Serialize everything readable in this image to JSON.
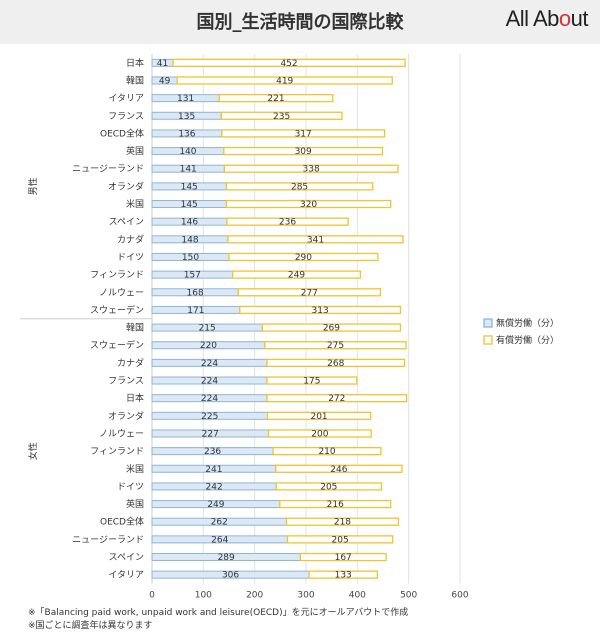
{
  "header": {
    "title": "国別_生活時間の国際比較",
    "logo": {
      "left": "All Ab",
      "o": "o",
      "right": "ut"
    }
  },
  "notes": [
    "※「Balancing paid work, unpaid work and leisure(OECD)」を元にオールアバウトで作成",
    "※国ごとに調査年は異なります"
  ],
  "colors": {
    "unpaid_fill": "#dce9f5",
    "unpaid_border": "#8db4d9",
    "paid_fill": "#ffffff",
    "paid_border": "#f2c230"
  },
  "chart_data": {
    "type": "bar",
    "orientation": "horizontal",
    "stacked": true,
    "xlim": [
      0,
      600
    ],
    "xticks": [
      0,
      100,
      200,
      300,
      400,
      500,
      600
    ],
    "grid": true,
    "legend_position": "right",
    "series_names": [
      "無償労働（分）",
      "有償労働（分）"
    ],
    "groups": [
      {
        "name": "男性",
        "categories": [
          "日本",
          "韓国",
          "イタリア",
          "フランス",
          "OECD全体",
          "英国",
          "ニュージーランド",
          "オランダ",
          "米国",
          "スペイン",
          "カナダ",
          "ドイツ",
          "フィンランド",
          "ノルウェー",
          "スウェーデン"
        ],
        "unpaid": [
          41,
          49,
          131,
          135,
          136,
          140,
          141,
          145,
          145,
          146,
          148,
          150,
          157,
          168,
          171
        ],
        "paid": [
          452,
          419,
          221,
          235,
          317,
          309,
          338,
          285,
          320,
          236,
          341,
          290,
          249,
          277,
          313
        ]
      },
      {
        "name": "女性",
        "categories": [
          "韓国",
          "スウェーデン",
          "カナダ",
          "フランス",
          "日本",
          "オランダ",
          "ノルウェー",
          "フィンランド",
          "米国",
          "ドイツ",
          "英国",
          "OECD全体",
          "ニュージーランド",
          "スペイン",
          "イタリア"
        ],
        "unpaid": [
          215,
          220,
          224,
          224,
          224,
          225,
          227,
          236,
          241,
          242,
          249,
          262,
          264,
          289,
          306
        ],
        "paid": [
          269,
          275,
          268,
          175,
          272,
          201,
          200,
          210,
          246,
          205,
          216,
          218,
          205,
          167,
          133
        ]
      }
    ]
  }
}
